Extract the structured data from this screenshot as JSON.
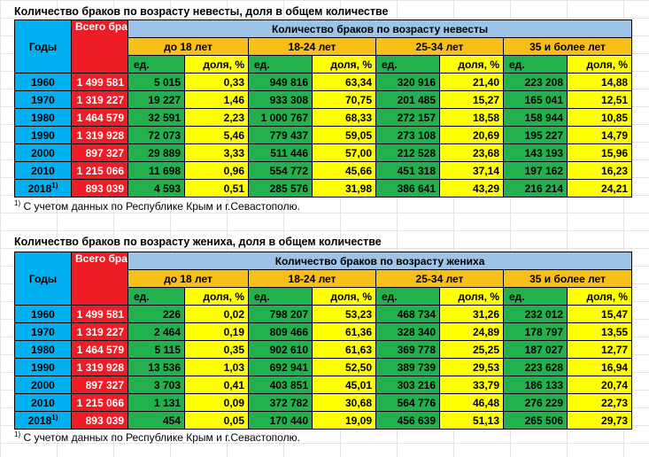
{
  "colors": {
    "years_bg": "#00b0f0",
    "total_bg": "#ee1c25",
    "group_header_bg": "#9dc3e6",
    "age_header_bg": "#f9bf19",
    "count_bg": "#22b14c",
    "share_bg": "#ffff00"
  },
  "tables": [
    {
      "title": "Количество браков по возрасту невесты, доля в общем количестве",
      "years_label": "Годы",
      "total_label": "Всего браков",
      "group_label": "Количество браков по возрасту невесты",
      "age_groups": [
        "до 18 лет",
        "18-24 лет",
        "25-34 лет",
        "35 и более лет"
      ],
      "count_label": "ед.",
      "share_label": "доля, %",
      "rows": [
        {
          "year": "1960",
          "sup": "",
          "total": "1 499 581",
          "values": [
            "5 015",
            "0,33",
            "949 816",
            "63,34",
            "320 916",
            "21,40",
            "223 208",
            "14,88"
          ]
        },
        {
          "year": "1970",
          "sup": "",
          "total": "1 319 227",
          "values": [
            "19 227",
            "1,46",
            "933 308",
            "70,75",
            "201 485",
            "15,27",
            "165 041",
            "12,51"
          ]
        },
        {
          "year": "1980",
          "sup": "",
          "total": "1 464 579",
          "values": [
            "32 591",
            "2,23",
            "1 000 767",
            "68,33",
            "272 157",
            "18,58",
            "158 944",
            "10,85"
          ]
        },
        {
          "year": "1990",
          "sup": "",
          "total": "1 319 928",
          "values": [
            "72 073",
            "5,46",
            "779 437",
            "59,05",
            "273 108",
            "20,69",
            "195 227",
            "14,79"
          ]
        },
        {
          "year": "2000",
          "sup": "",
          "total": "897 327",
          "values": [
            "29 889",
            "3,33",
            "511 446",
            "57,00",
            "212 528",
            "23,68",
            "143 193",
            "15,96"
          ]
        },
        {
          "year": "2010",
          "sup": "",
          "total": "1 215 066",
          "values": [
            "11 698",
            "0,96",
            "554 772",
            "45,66",
            "451 318",
            "37,14",
            "197 162",
            "16,23"
          ]
        },
        {
          "year": "2018",
          "sup": "1)",
          "total": "893 039",
          "values": [
            "4 593",
            "0,51",
            "285 576",
            "31,98",
            "386 641",
            "43,29",
            "216 214",
            "24,21"
          ]
        }
      ],
      "note_sup": "1)",
      "note": " С учетом данных по Республике Крым и г.Севастополю."
    },
    {
      "title": "Количество браков по возрасту жениха, доля в общем количестве",
      "years_label": "Годы",
      "total_label": "Всего браков",
      "group_label": "Количество браков по возрасту жениха",
      "age_groups": [
        "до 18 лет",
        "18-24 лет",
        "25-34 лет",
        "35 и более лет"
      ],
      "count_label": "ед.",
      "share_label": "доля, %",
      "rows": [
        {
          "year": "1960",
          "sup": "",
          "total": "1 499 581",
          "values": [
            "226",
            "0,02",
            "798 207",
            "53,23",
            "468 734",
            "31,26",
            "232 012",
            "15,47"
          ]
        },
        {
          "year": "1970",
          "sup": "",
          "total": "1 319 227",
          "values": [
            "2 464",
            "0,19",
            "809 466",
            "61,36",
            "328 340",
            "24,89",
            "178 797",
            "13,55"
          ]
        },
        {
          "year": "1980",
          "sup": "",
          "total": "1 464 579",
          "values": [
            "5 115",
            "0,35",
            "902 610",
            "61,63",
            "369 778",
            "25,25",
            "187 027",
            "12,77"
          ]
        },
        {
          "year": "1990",
          "sup": "",
          "total": "1 319 928",
          "values": [
            "13 536",
            "1,03",
            "692 941",
            "52,50",
            "389 739",
            "29,53",
            "223 628",
            "16,94"
          ]
        },
        {
          "year": "2000",
          "sup": "",
          "total": "897 327",
          "values": [
            "3 703",
            "0,41",
            "403 851",
            "45,01",
            "303 216",
            "33,79",
            "186 133",
            "20,74"
          ]
        },
        {
          "year": "2010",
          "sup": "",
          "total": "1 215 066",
          "values": [
            "1 131",
            "0,09",
            "372 782",
            "30,68",
            "564 776",
            "46,48",
            "276 229",
            "22,73"
          ]
        },
        {
          "year": "2018",
          "sup": "1)",
          "total": "893 039",
          "values": [
            "454",
            "0,05",
            "170 440",
            "19,09",
            "456 639",
            "51,13",
            "265 506",
            "29,73"
          ]
        }
      ],
      "note_sup": "1)",
      "note": " С учетом данных по Республике Крым и г.Севастополю."
    }
  ]
}
